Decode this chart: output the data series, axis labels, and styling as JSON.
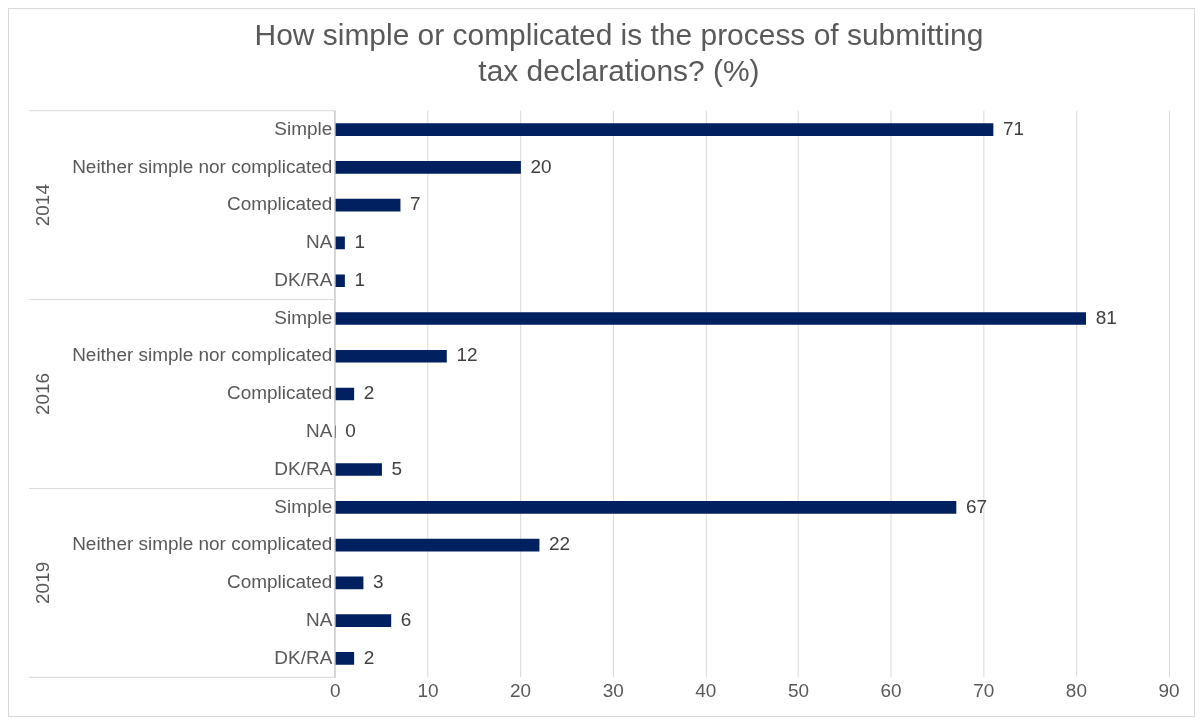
{
  "chart_data": {
    "type": "bar",
    "orientation": "horizontal",
    "title": "How simple or complicated is the process of submitting tax declarations? (%)",
    "categories": [
      "Simple",
      "Neither simple nor complicated",
      "Complicated",
      "NA",
      "DK/RA",
      "Simple",
      "Neither simple nor complicated",
      "Complicated",
      "NA",
      "DK/RA",
      "Simple",
      "Neither simple nor complicated",
      "Complicated",
      "NA",
      "DK/RA"
    ],
    "values": [
      71,
      20,
      7,
      1,
      1,
      81,
      12,
      2,
      0,
      5,
      67,
      22,
      3,
      6,
      2
    ],
    "color": "#002060",
    "xlim": [
      0,
      90
    ],
    "xticks": [
      0,
      10,
      20,
      30,
      40,
      50,
      60,
      70,
      80,
      90
    ],
    "grid": "x",
    "legend": false,
    "data_labels": true,
    "annotations": [
      "2014",
      "2016",
      "2019"
    ]
  }
}
